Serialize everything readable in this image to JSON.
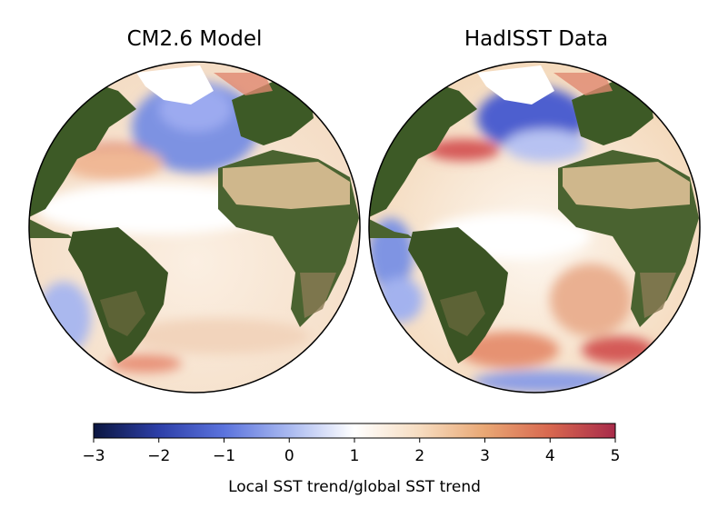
{
  "panels": [
    {
      "title": "CM2.6 Model"
    },
    {
      "title": "HadISST Data"
    }
  ],
  "colorbar": {
    "label": "Local SST trend/global SST trend",
    "ticks": [
      -3,
      -2,
      -1,
      0,
      1,
      2,
      3,
      4,
      5
    ],
    "tick_labels": [
      "−3",
      "−2",
      "−1",
      "0",
      "1",
      "2",
      "3",
      "4",
      "5"
    ],
    "range": [
      -3,
      5
    ],
    "colors": [
      "#0b1640",
      "#2d3fa8",
      "#5b73dd",
      "#a9b9f0",
      "#ffffff",
      "#f6dcc0",
      "#e9a774",
      "#d8674f",
      "#a82b4a"
    ]
  },
  "colors": {
    "land_dark": "#3d5a26",
    "land_light": "#7a7048",
    "desert": "#cfb78c",
    "ice": "#ffffff",
    "ocean_neutral": "#fbf4ea",
    "warm": "#f2cfb0",
    "strong_warm": "#d45a57",
    "cool": "#8196e6",
    "strong_cool": "#4156c8"
  }
}
